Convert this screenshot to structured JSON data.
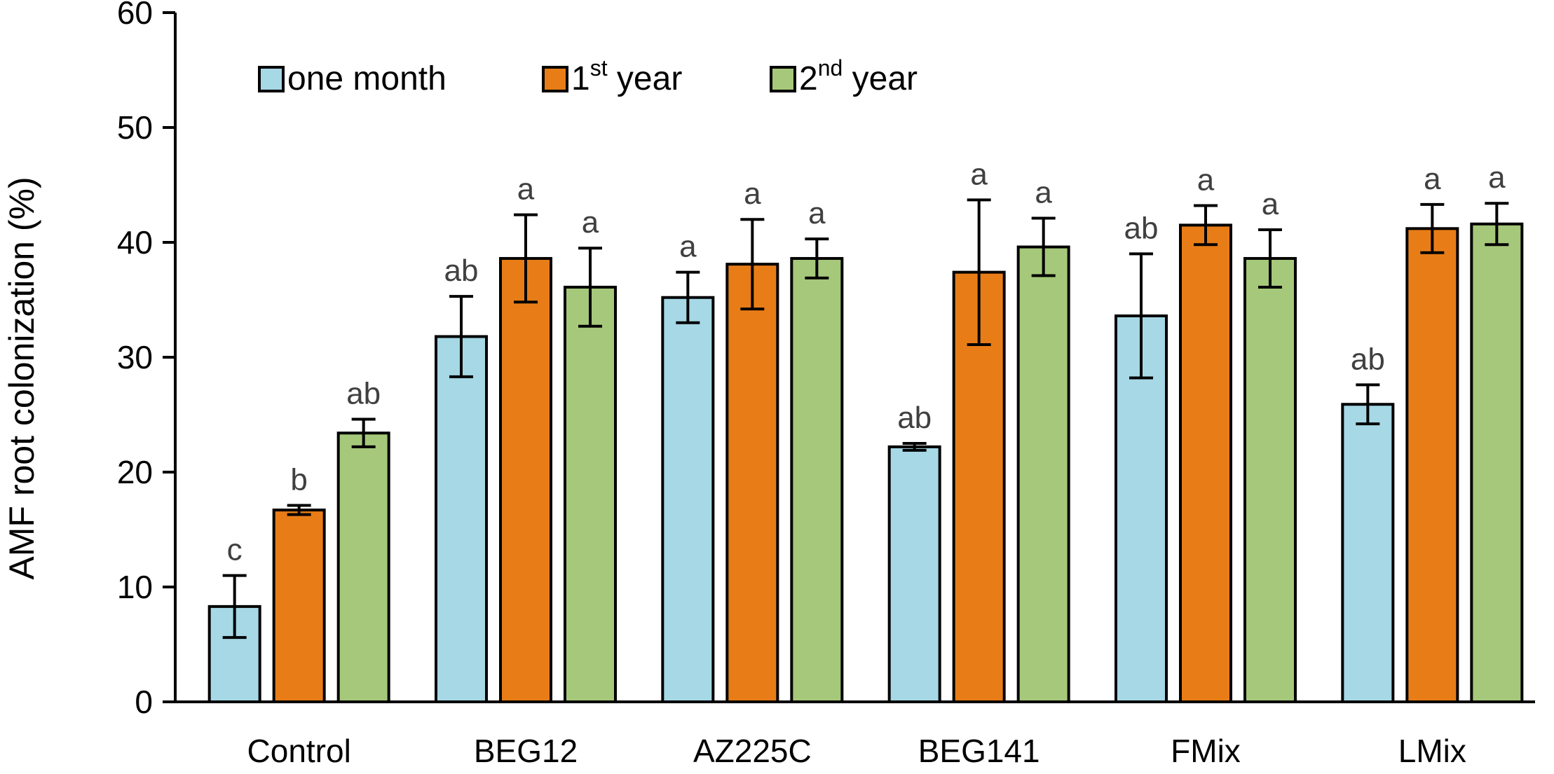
{
  "chart_data": {
    "type": "bar",
    "title": "",
    "xlabel": "",
    "ylabel": "AMF root colonization (%)",
    "ylim": [
      0,
      60
    ],
    "yticks": [
      0,
      10,
      20,
      30,
      40,
      50,
      60
    ],
    "legend_position": "top-left",
    "categories": [
      "Control",
      "BEG12",
      "AZ225C",
      "BEG141",
      "FMix",
      "LMix"
    ],
    "series": [
      {
        "name": "one month",
        "legend": {
          "pre": "one month",
          "sup": "",
          "post": ""
        },
        "color": "#a6d8e6",
        "values": [
          8.3,
          31.8,
          35.2,
          22.2,
          33.6,
          25.9
        ],
        "errors": [
          2.7,
          3.5,
          2.2,
          0.3,
          5.4,
          1.7
        ],
        "labels": [
          "c",
          "ab",
          "a",
          "ab",
          "ab",
          "ab"
        ]
      },
      {
        "name": "1st year",
        "legend": {
          "pre": "1",
          "sup": "st",
          "post": " year"
        },
        "color": "#e87d17",
        "values": [
          16.7,
          38.6,
          38.1,
          37.4,
          41.5,
          41.2
        ],
        "errors": [
          0.4,
          3.8,
          3.9,
          6.3,
          1.7,
          2.1
        ],
        "labels": [
          "b",
          "a",
          "a",
          "a",
          "a",
          "a"
        ]
      },
      {
        "name": "2nd year",
        "legend": {
          "pre": "2",
          "sup": "nd",
          "post": " year"
        },
        "color": "#a6c87a",
        "values": [
          23.4,
          36.1,
          38.6,
          39.6,
          38.6,
          41.6
        ],
        "errors": [
          1.2,
          3.4,
          1.7,
          2.5,
          2.5,
          1.8
        ],
        "labels": [
          "ab",
          "a",
          "a",
          "a",
          "a",
          "a"
        ]
      }
    ]
  }
}
